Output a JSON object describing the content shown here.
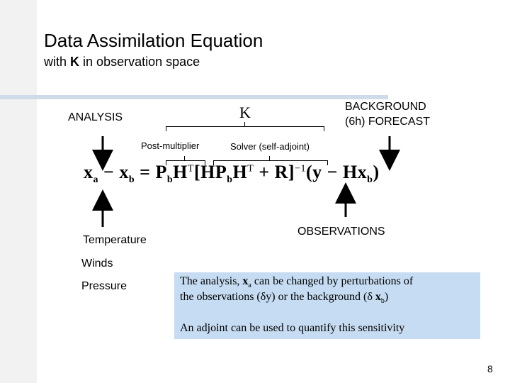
{
  "slide": {
    "title": "Data Assimilation Equation",
    "subtitle_prefix": "with",
    "subtitle_bold": "K",
    "subtitle_suffix": "in observation space",
    "page_number": "8"
  },
  "labels": {
    "analysis": "ANALYSIS",
    "k": "K",
    "background_line1": "BACKGROUND",
    "background_line2": "(6h) FORECAST",
    "post_multiplier": "Post-multiplier",
    "solver": "Solver (self-adjoint)",
    "observations": "OBSERVATIONS",
    "temperature": "Temperature",
    "winds": "Winds",
    "pressure": "Pressure"
  },
  "equation": {
    "xa": "x",
    "a_sub": "a",
    "minus1": " − ",
    "xb": "x",
    "b_sub": "b",
    "eq": " = ",
    "P": "P",
    "Pb_sub": "b",
    "H": "H",
    "T1": "T",
    "lb": "[",
    "HPb": "HP",
    "HPb_sub": "b",
    "H2": "H",
    "T2": "T",
    "plusR": " + R]",
    "inv": "−1",
    "paren": "(y − Hx",
    "paren_sub": "b",
    "close": ")"
  },
  "note": {
    "line1_a": "The analysis, ",
    "line1_x": "x",
    "line1_sub": "a",
    "line1_b": " can be changed by perturbations of",
    "line2_a": "the observations (δy) or the background (δ ",
    "line2_x": "x",
    "line2_sub": "b",
    "line2_b": ")",
    "line3": "An adjoint can be used to quantify this sensitivity"
  },
  "colors": {
    "strip": "#f2f2f2",
    "rule": "#cfdbe9",
    "note_bg": "#c6dcf2"
  }
}
